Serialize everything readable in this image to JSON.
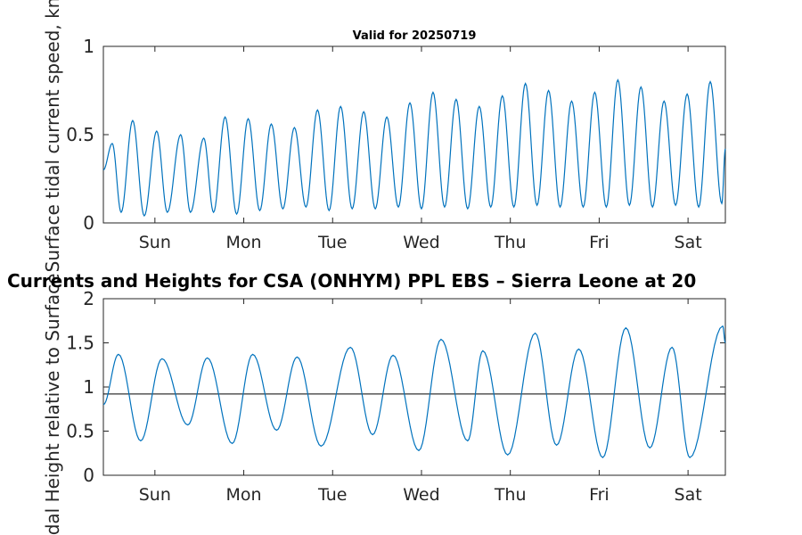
{
  "chart_data": [
    {
      "type": "line",
      "title": "Valid for 20250719",
      "ylabel": "Surface tidal current speed, kn",
      "xlabel": "",
      "ylim": [
        0,
        1
      ],
      "yticks": [
        0,
        0.5,
        1
      ],
      "ytick_labels": [
        "0",
        "0.5",
        "1"
      ],
      "xlim": [
        0,
        7
      ],
      "xticks": [
        0.58,
        1.58,
        2.58,
        3.58,
        4.58,
        5.58,
        6.58
      ],
      "xtick_labels": [
        "Sun",
        "Mon",
        "Tue",
        "Wed",
        "Thu",
        "Fri",
        "Sat"
      ],
      "grid": false,
      "line_color": "#0072bd",
      "series": [
        {
          "x": [
            0,
            0.1,
            0.2,
            0.33,
            0.46,
            0.6,
            0.72,
            0.87,
            0.98,
            1.13,
            1.24,
            1.37,
            1.5,
            1.63,
            1.76,
            1.89,
            2.02,
            2.15,
            2.28,
            2.41,
            2.54,
            2.67,
            2.8,
            2.93,
            3.06,
            3.19,
            3.32,
            3.45,
            3.58,
            3.71,
            3.84,
            3.97,
            4.1,
            4.23,
            4.36,
            4.49,
            4.62,
            4.75,
            4.88,
            5.01,
            5.14,
            5.27,
            5.4,
            5.53,
            5.66,
            5.79,
            5.92,
            6.05,
            6.18,
            6.31,
            6.44,
            6.57,
            6.7,
            6.83,
            6.96,
            7.0
          ],
          "y": [
            0.3,
            0.45,
            0.06,
            0.58,
            0.04,
            0.52,
            0.06,
            0.5,
            0.06,
            0.48,
            0.06,
            0.6,
            0.05,
            0.59,
            0.07,
            0.56,
            0.08,
            0.54,
            0.09,
            0.64,
            0.07,
            0.66,
            0.08,
            0.63,
            0.08,
            0.6,
            0.09,
            0.68,
            0.08,
            0.74,
            0.09,
            0.7,
            0.08,
            0.66,
            0.09,
            0.72,
            0.09,
            0.79,
            0.1,
            0.75,
            0.09,
            0.69,
            0.09,
            0.74,
            0.09,
            0.81,
            0.1,
            0.77,
            0.09,
            0.69,
            0.1,
            0.73,
            0.09,
            0.8,
            0.11,
            0.42
          ]
        }
      ]
    },
    {
      "type": "line",
      "title": "Currents and Heights for CSA (ONHYM) PPL EBS  – Sierra Leone at 20",
      "ylabel": "Tidal Height relative to Surface",
      "xlabel": "",
      "ylim": [
        0,
        2
      ],
      "yticks": [
        0,
        0.5,
        1,
        1.5,
        2
      ],
      "ytick_labels": [
        "0",
        "0.5",
        "1",
        "1.5",
        "2"
      ],
      "xlim": [
        0,
        7
      ],
      "xticks": [
        0.58,
        1.58,
        2.58,
        3.58,
        4.58,
        5.58,
        6.58
      ],
      "xtick_labels": [
        "Sun",
        "Mon",
        "Tue",
        "Wed",
        "Thu",
        "Fri",
        "Sat"
      ],
      "grid": false,
      "line_color": "#0072bd",
      "reference_line": {
        "y": 0.92,
        "color": "#000000"
      },
      "series": [
        {
          "x": [
            0,
            0.17,
            0.42,
            0.66,
            0.95,
            1.17,
            1.45,
            1.68,
            1.95,
            2.18,
            2.45,
            2.78,
            3.03,
            3.26,
            3.55,
            3.8,
            4.1,
            4.27,
            4.55,
            4.86,
            5.1,
            5.35,
            5.62,
            5.88,
            6.15,
            6.4,
            6.6,
            6.97,
            7.0
          ],
          "y": [
            0.8,
            1.37,
            0.39,
            1.32,
            0.57,
            1.33,
            0.36,
            1.37,
            0.51,
            1.34,
            0.33,
            1.45,
            0.46,
            1.36,
            0.28,
            1.54,
            0.39,
            1.41,
            0.23,
            1.61,
            0.34,
            1.43,
            0.2,
            1.67,
            0.31,
            1.45,
            0.2,
            1.69,
            1.5
          ]
        }
      ]
    }
  ]
}
